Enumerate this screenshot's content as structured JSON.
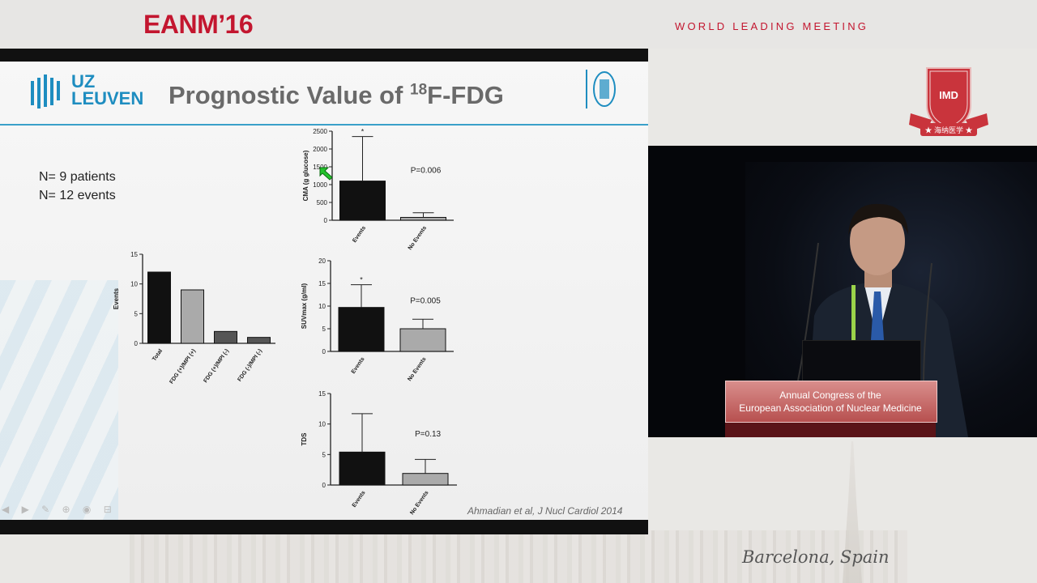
{
  "banner": {
    "logo_text": "EANM’16",
    "tagline": "WORLD LEADING MEETING",
    "location": "Barcelona, Spain",
    "badge": {
      "initials": "IMD",
      "chinese": "★ 海纳医学 ★"
    }
  },
  "slide": {
    "logo_lines": [
      "UZ",
      "LEUVEN"
    ],
    "title_prefix": "Prognostic Value of ",
    "title_sup": "18",
    "title_suffix": "F-FDG",
    "n_patients": "N= 9 patients",
    "n_events": "N= 12 events",
    "citation": "Ahmadian et al, J Nucl Cardiol 2014",
    "colors": {
      "accent": "#3aa0c9",
      "logo_blue": "#1e8dc0"
    }
  },
  "chart_data": [
    {
      "type": "bar",
      "categories": [
        "Total",
        "FDG (+)/MPI (+)",
        "FDG (+)/MPI (-)",
        "FDG (-)/MPI (-)"
      ],
      "values": [
        12,
        9,
        2,
        1
      ],
      "colors": [
        "#111111",
        "#aaaaaa",
        "#555555",
        "#555555"
      ],
      "ylabel": "Events",
      "ylim": [
        0,
        15
      ],
      "yticks": [
        0,
        5,
        10,
        15
      ]
    },
    {
      "type": "bar",
      "categories": [
        "Events",
        "No Events"
      ],
      "values": [
        1100,
        80
      ],
      "errors": [
        1250,
        130
      ],
      "colors": [
        "#111111",
        "#aaaaaa"
      ],
      "ylabel": "CMA (g glucose)",
      "ylim": [
        0,
        2500
      ],
      "yticks": [
        0,
        500,
        1000,
        1500,
        2000,
        2500
      ],
      "annotation": "P=0.006",
      "star": "*"
    },
    {
      "type": "bar",
      "categories": [
        "Events",
        "No Events"
      ],
      "values": [
        9.7,
        5.0
      ],
      "errors": [
        5.0,
        2.1
      ],
      "colors": [
        "#111111",
        "#aaaaaa"
      ],
      "ylabel": "SUVmax (g/ml)",
      "ylim": [
        0,
        20
      ],
      "yticks": [
        0,
        5,
        10,
        15,
        20
      ],
      "annotation": "P=0.005",
      "star": "*"
    },
    {
      "type": "bar",
      "categories": [
        "Events",
        "No Events"
      ],
      "values": [
        5.4,
        1.9
      ],
      "errors": [
        6.3,
        2.3
      ],
      "colors": [
        "#111111",
        "#aaaaaa"
      ],
      "ylabel": "TDS",
      "ylim": [
        0,
        15
      ],
      "yticks": [
        0,
        5,
        10,
        15
      ],
      "annotation": "P=0.13"
    }
  ],
  "video": {
    "lectern_line1": "Annual Congress of the",
    "lectern_line2": "European Association of Nuclear Medicine"
  }
}
